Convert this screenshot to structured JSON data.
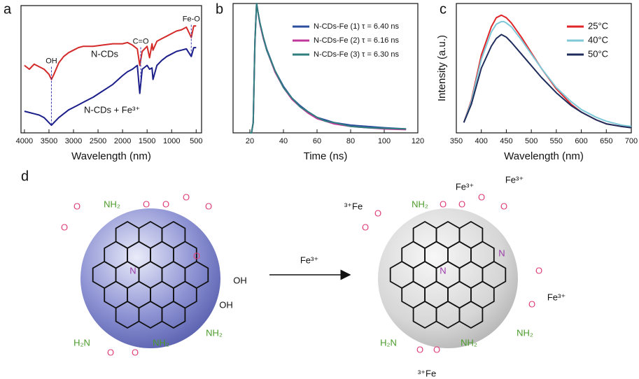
{
  "chart_data": [
    {
      "type": "line",
      "panel_label": "a",
      "xlabel": "Wavelength (nm)",
      "xlim": [
        4070,
        390
      ],
      "ylim": [
        0,
        100
      ],
      "xticks": [
        4000,
        3500,
        3000,
        2500,
        2000,
        1500,
        1000,
        500
      ],
      "x": [
        4000,
        3900,
        3800,
        3700,
        3600,
        3500,
        3450,
        3400,
        3300,
        3200,
        3100,
        3000,
        2900,
        2800,
        2600,
        2400,
        2200,
        2000,
        1900,
        1800,
        1700,
        1650,
        1600,
        1500,
        1450,
        1400,
        1380,
        1300,
        1200,
        1100,
        1000,
        900,
        800,
        700,
        600,
        550,
        500
      ],
      "series": [
        {
          "name": "N-CDs",
          "color": "#d42a2a",
          "values": [
            53,
            50,
            54,
            52,
            50,
            46,
            42,
            46,
            55,
            60,
            63,
            65,
            67,
            68,
            68,
            69,
            70,
            70,
            71,
            69,
            66,
            53,
            64,
            68,
            59,
            70,
            65,
            72,
            74,
            76,
            78,
            80,
            81,
            83,
            75,
            84,
            84
          ]
        },
        {
          "name": "N-CDs + Fe³⁺",
          "color": "#1c1f8a",
          "values": [
            17,
            16,
            15,
            14,
            12,
            8,
            6,
            8,
            12,
            15,
            18,
            20,
            22,
            24,
            28,
            33,
            38,
            45,
            48,
            50,
            53,
            31,
            50,
            53,
            50,
            51,
            42,
            53,
            57,
            60,
            62,
            64,
            65,
            66,
            60,
            67,
            67
          ]
        }
      ],
      "annotations": [
        {
          "text": "OH",
          "x": 3450
        },
        {
          "text": "C=O",
          "x": 1630
        },
        {
          "text": "Fe-O",
          "x": 600
        }
      ]
    },
    {
      "type": "line",
      "panel_label": "b",
      "xlabel": "Time (ns)",
      "legend": "upper right",
      "xlim": [
        10,
        120
      ],
      "ylim": [
        0,
        100
      ],
      "xticks": [
        20,
        40,
        60,
        80,
        100,
        120
      ],
      "x": [
        20,
        21,
        22,
        23,
        24,
        25,
        26,
        28,
        30,
        35,
        40,
        45,
        50,
        55,
        60,
        65,
        70,
        80,
        90,
        100,
        113
      ],
      "series": [
        {
          "name": "N-CDs-Fe (1) τ = 6.40 ns",
          "color": "#2b4f9e",
          "values": [
            0,
            0,
            8,
            70,
            100,
            92,
            85,
            74,
            65,
            48,
            36,
            27,
            21,
            16,
            12,
            10,
            8,
            6,
            5,
            4,
            3
          ]
        },
        {
          "name": "N-CDs-Fe (2) τ = 6.16 ns",
          "color": "#c0389a",
          "values": [
            0,
            0,
            8,
            70,
            100,
            92,
            84,
            73,
            64,
            47,
            35,
            26,
            20,
            15,
            11,
            9,
            7,
            5,
            4,
            3,
            2.5
          ]
        },
        {
          "name": "N-CDs-Fe (3) τ = 6.30 ns",
          "color": "#2f7f7f",
          "values": [
            0,
            0,
            8,
            70,
            100,
            92,
            85,
            74,
            64,
            48,
            35,
            27,
            20,
            16,
            12,
            9,
            8,
            5,
            4,
            3.5,
            3
          ]
        }
      ]
    },
    {
      "type": "line",
      "panel_label": "c",
      "xlabel": "Wavelength (nm)",
      "ylabel": "Intensity (a.u.)",
      "legend": "upper right",
      "xlim": [
        350,
        700
      ],
      "ylim": [
        0,
        100
      ],
      "xticks": [
        350,
        400,
        450,
        500,
        550,
        600,
        650,
        700
      ],
      "x": [
        365,
        380,
        400,
        420,
        430,
        440,
        445,
        450,
        460,
        480,
        500,
        520,
        550,
        580,
        600,
        630,
        650,
        680,
        700
      ],
      "series": [
        {
          "name": "25°C",
          "color": "#e0252a",
          "values": [
            8,
            25,
            60,
            82,
            89,
            91,
            90,
            89,
            85,
            74,
            62,
            50,
            34,
            22,
            16,
            10,
            7,
            5,
            4
          ]
        },
        {
          "name": "40°C",
          "color": "#7ec8d8",
          "values": [
            8,
            24,
            57,
            78,
            84,
            86,
            86,
            85,
            82,
            72,
            61,
            50,
            35,
            24,
            18,
            12,
            9,
            6,
            5
          ]
        },
        {
          "name": "50°C",
          "color": "#1f2d5c",
          "values": [
            8,
            22,
            50,
            67,
            73,
            76,
            75,
            74,
            70,
            61,
            52,
            43,
            31,
            21,
            16,
            10,
            7,
            5,
            4
          ]
        }
      ]
    }
  ],
  "diagram": {
    "panel_label": "d",
    "arrow_label": "Fe³⁺",
    "left_labels": [
      "NH₂",
      "O",
      "O",
      "O",
      "O",
      "O",
      "O",
      "N",
      "O",
      "OH",
      "OH",
      "NH₂",
      "H₂N",
      "O",
      "O",
      "NH₂"
    ],
    "right_labels": [
      "³⁺Fe",
      "O",
      "O",
      "NH₂",
      "Fe³⁺",
      "O",
      "O",
      "O",
      "O",
      "Fe³⁺",
      "N",
      "N",
      "O",
      "O",
      "Fe³⁺",
      "NH₂",
      "H₂N",
      "O",
      "O",
      "NH₂",
      "³⁺Fe"
    ]
  }
}
